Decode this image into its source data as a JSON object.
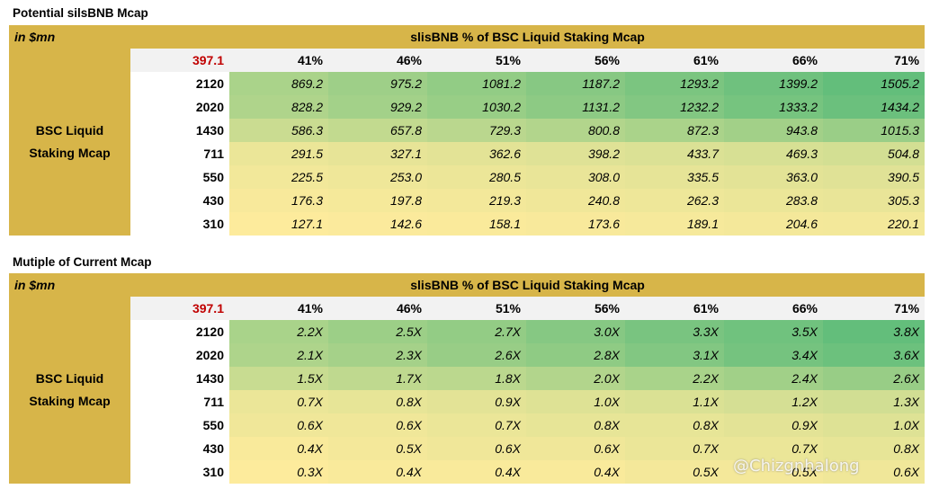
{
  "tables": [
    {
      "title": "Potential silsBNB Mcap",
      "unit_note": "in $mn",
      "header": "slisBNB % of BSC Liquid Staking Mcap",
      "base_value": "397.1",
      "row_label_line1": "BSC Liquid",
      "row_label_line2": "Staking Mcap",
      "columns": [
        "41%",
        "46%",
        "51%",
        "56%",
        "61%",
        "66%",
        "71%"
      ],
      "rows": [
        {
          "label": "2120",
          "cells": [
            "869.2",
            "975.2",
            "1081.2",
            "1187.2",
            "1293.2",
            "1399.2",
            "1505.2"
          ]
        },
        {
          "label": "2020",
          "cells": [
            "828.2",
            "929.2",
            "1030.2",
            "1131.2",
            "1232.2",
            "1333.2",
            "1434.2"
          ]
        },
        {
          "label": "1430",
          "cells": [
            "586.3",
            "657.8",
            "729.3",
            "800.8",
            "872.3",
            "943.8",
            "1015.3"
          ]
        },
        {
          "label": "711",
          "cells": [
            "291.5",
            "327.1",
            "362.6",
            "398.2",
            "433.7",
            "469.3",
            "504.8"
          ]
        },
        {
          "label": "550",
          "cells": [
            "225.5",
            "253.0",
            "280.5",
            "308.0",
            "335.5",
            "363.0",
            "390.5"
          ]
        },
        {
          "label": "430",
          "cells": [
            "176.3",
            "197.8",
            "219.3",
            "240.8",
            "262.3",
            "283.8",
            "305.3"
          ]
        },
        {
          "label": "310",
          "cells": [
            "127.1",
            "142.6",
            "158.1",
            "173.6",
            "189.1",
            "204.6",
            "220.1"
          ]
        }
      ]
    },
    {
      "title": "Mutiple of Current Mcap",
      "unit_note": "in $mn",
      "header": "slisBNB % of BSC Liquid Staking Mcap",
      "base_value": "397.1",
      "row_label_line1": "BSC Liquid",
      "row_label_line2": "Staking Mcap",
      "columns": [
        "41%",
        "46%",
        "51%",
        "56%",
        "61%",
        "66%",
        "71%"
      ],
      "rows": [
        {
          "label": "2120",
          "cells": [
            "2.2X",
            "2.5X",
            "2.7X",
            "3.0X",
            "3.3X",
            "3.5X",
            "3.8X"
          ]
        },
        {
          "label": "2020",
          "cells": [
            "2.1X",
            "2.3X",
            "2.6X",
            "2.8X",
            "3.1X",
            "3.4X",
            "3.6X"
          ]
        },
        {
          "label": "1430",
          "cells": [
            "1.5X",
            "1.7X",
            "1.8X",
            "2.0X",
            "2.2X",
            "2.4X",
            "2.6X"
          ]
        },
        {
          "label": "711",
          "cells": [
            "0.7X",
            "0.8X",
            "0.9X",
            "1.0X",
            "1.1X",
            "1.2X",
            "1.3X"
          ]
        },
        {
          "label": "550",
          "cells": [
            "0.6X",
            "0.6X",
            "0.7X",
            "0.8X",
            "0.8X",
            "0.9X",
            "1.0X"
          ]
        },
        {
          "label": "430",
          "cells": [
            "0.4X",
            "0.5X",
            "0.6X",
            "0.6X",
            "0.7X",
            "0.7X",
            "0.8X"
          ]
        },
        {
          "label": "310",
          "cells": [
            "0.3X",
            "0.4X",
            "0.4X",
            "0.4X",
            "0.5X",
            "0.5X",
            "0.6X"
          ]
        }
      ]
    }
  ],
  "watermark": "@Chizgnhalong",
  "colors": {
    "gold": "#d7b549",
    "base_value_red": "#c00000",
    "scale_low": "#fdeb9c",
    "scale_high": "#63be7b"
  }
}
